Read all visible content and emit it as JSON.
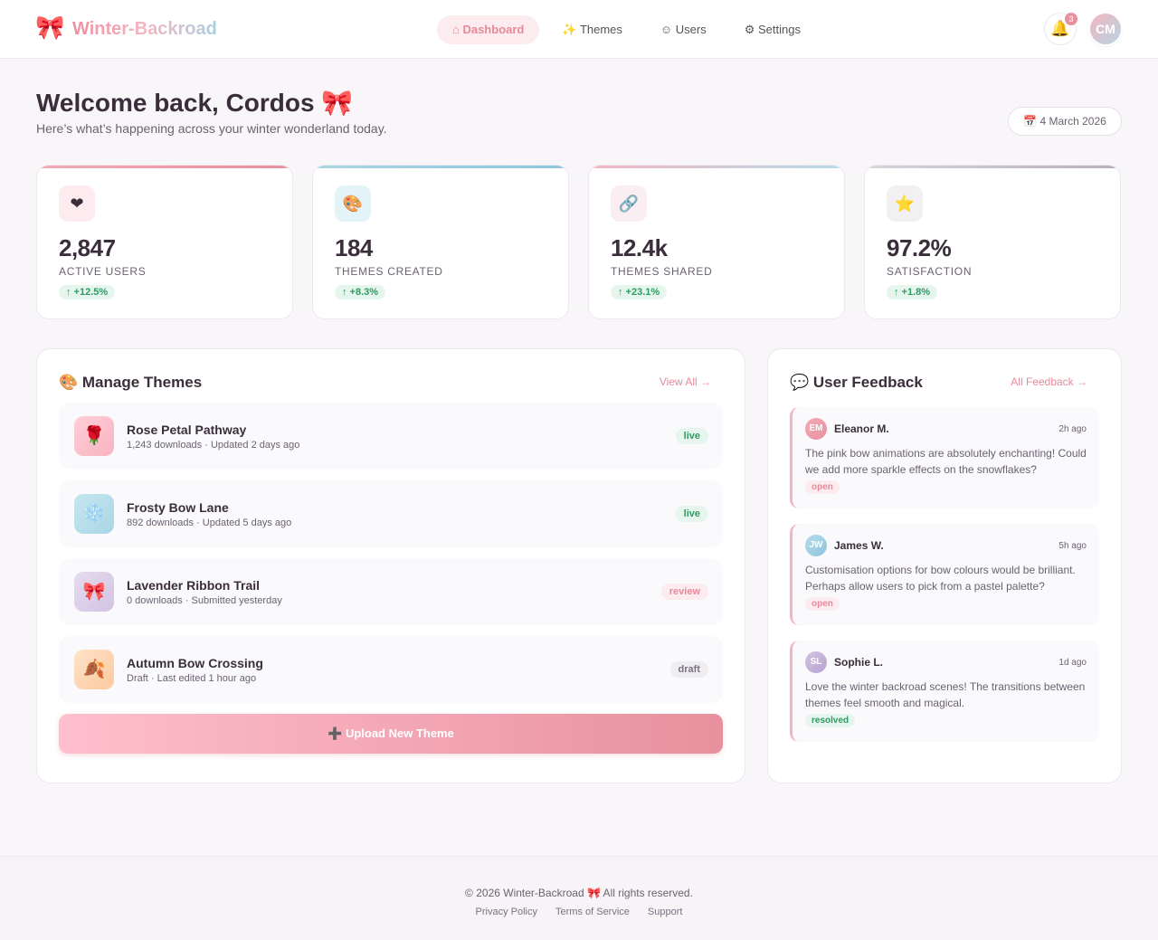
{
  "header": {
    "logo_icon": "🎀",
    "brand": "Winter-Backroad",
    "nav": [
      "⌂ Dashboard",
      "✨ Themes",
      "☺ Users",
      "⚙ Settings"
    ],
    "notification_icon": "🔔",
    "notification_count": "3",
    "avatar": "CM"
  },
  "welcome": {
    "title": "Welcome back, Cordos 🎀",
    "subtitle": "Here’s what’s happening across your winter wonderland today.",
    "date": "📅 4 March 2026"
  },
  "stats": [
    {
      "icon": "❤",
      "value": "2,847",
      "label": "ACTIVE USERS",
      "change": "↑ +12.5%"
    },
    {
      "icon": "🎨",
      "value": "184",
      "label": "THEMES CREATED",
      "change": "↑ +8.3%"
    },
    {
      "icon": "🔗",
      "value": "12.4k",
      "label": "THEMES SHARED",
      "change": "↑ +23.1%"
    },
    {
      "icon": "⭐",
      "value": "97.2%",
      "label": "SATISFACTION",
      "change": "↑ +1.8%"
    }
  ],
  "themes": {
    "title": "🎨 Manage Themes",
    "link": "View All →",
    "items": [
      {
        "icon": "🌹",
        "name": "Rose Petal Pathway",
        "meta": "1,243 downloads · Updated 2 days ago",
        "status": "live"
      },
      {
        "icon": "❄️",
        "name": "Frosty Bow Lane",
        "meta": "892 downloads · Updated 5 days ago",
        "status": "live"
      },
      {
        "icon": "🎀",
        "name": "Lavender Ribbon Trail",
        "meta": "0 downloads · Submitted yesterday",
        "status": "review"
      },
      {
        "icon": "🍂",
        "name": "Autumn Bow Crossing",
        "meta": "Draft · Last edited 1 hour ago",
        "status": "draft"
      }
    ],
    "upload": "➕ Upload New Theme"
  },
  "feedback": {
    "title": "💬 User Feedback",
    "link": "All Feedback →",
    "items": [
      {
        "initials": "EM",
        "name": "Eleanor M.",
        "time": "2h ago",
        "text": "The pink bow animations are absolutely enchanting! Could we add more sparkle effects on the snowflakes?",
        "status": "open"
      },
      {
        "initials": "JW",
        "name": "James W.",
        "time": "5h ago",
        "text": "Customisation options for bow colours would be brilliant. Perhaps allow users to pick from a pastel palette?",
        "status": "open"
      },
      {
        "initials": "SL",
        "name": "Sophie L.",
        "time": "1d ago",
        "text": "Love the winter backroad scenes! The transitions between themes feel smooth and magical.",
        "status": "resolved"
      }
    ]
  },
  "footer": {
    "copyright": "© 2026 Winter-Backroad 🎀 All rights reserved.",
    "links": [
      "Privacy Policy",
      "Terms of Service",
      "Support"
    ]
  }
}
